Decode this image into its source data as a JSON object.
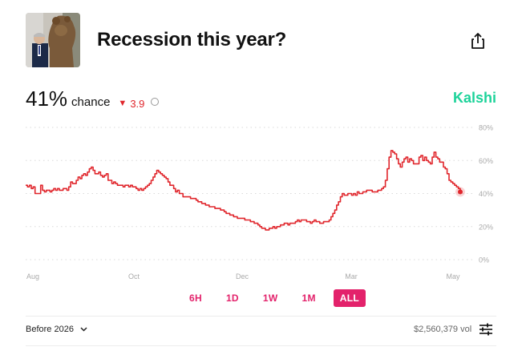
{
  "market": {
    "title": "Recession this year?",
    "probability": "41%",
    "chance_label": "chance",
    "delta": "3.9",
    "brand": "Kalshi",
    "brand_color": "#1dd39a"
  },
  "icons": {
    "share": "share-icon",
    "info": "info-icon",
    "delta": "triangle-down-icon",
    "chevron": "chevron-down-icon",
    "settings": "sliders-icon"
  },
  "chart_data": {
    "type": "line",
    "x_ticks": [
      "Aug",
      "Oct",
      "Dec",
      "Mar",
      "May"
    ],
    "y_ticks": [
      "80%",
      "60%",
      "40%",
      "20%",
      "0%"
    ],
    "ylim": [
      0,
      80
    ],
    "grid": true,
    "line_color": "#e0262c",
    "series": [
      {
        "values": [
          45,
          44,
          45,
          43,
          44,
          40,
          40,
          40,
          45,
          42,
          41,
          42,
          42,
          41,
          42,
          43,
          42,
          43,
          42,
          42,
          43,
          43,
          42,
          44,
          47,
          46,
          46,
          48,
          50,
          49,
          51,
          52,
          51,
          53,
          55,
          56,
          54,
          52,
          52,
          53,
          51,
          50,
          51,
          52,
          48,
          48,
          46,
          47,
          46,
          45,
          45,
          45,
          44,
          45,
          45,
          44,
          45,
          44,
          44,
          43,
          42,
          43,
          42,
          43,
          44,
          45,
          46,
          48,
          50,
          52,
          54,
          53,
          52,
          51,
          50,
          49,
          47,
          45,
          45,
          43,
          41,
          42,
          40,
          40,
          38,
          38,
          38,
          38,
          37,
          37,
          37,
          36,
          35,
          35,
          34,
          34,
          33,
          33,
          32,
          32,
          32,
          31,
          31,
          31,
          30,
          30,
          29,
          28,
          28,
          27,
          27,
          26,
          26,
          25,
          25,
          25,
          25,
          24,
          24,
          24,
          23,
          23,
          22,
          22,
          21,
          20,
          19,
          19,
          18,
          18,
          19,
          19,
          20,
          19,
          20,
          20,
          21,
          21,
          22,
          22,
          21,
          22,
          22,
          22,
          23,
          24,
          23,
          24,
          24,
          24,
          23,
          23,
          22,
          23,
          24,
          23,
          23,
          22,
          22,
          23,
          23,
          23,
          24,
          26,
          28,
          30,
          33,
          35,
          38,
          40,
          39,
          39,
          40,
          40,
          39,
          40,
          39,
          41,
          40,
          40,
          41,
          41,
          42,
          42,
          42,
          41,
          41,
          41,
          42,
          42,
          43,
          44,
          48,
          55,
          62,
          66,
          65,
          64,
          61,
          58,
          56,
          59,
          61,
          62,
          59,
          61,
          60,
          58,
          58,
          58,
          62,
          63,
          60,
          62,
          60,
          59,
          58,
          62,
          65,
          62,
          61,
          59,
          59,
          56,
          55,
          52,
          48,
          47,
          46,
          45,
          44,
          43,
          41
        ],
        "last_value": 41
      }
    ]
  },
  "range_buttons": [
    {
      "label": "6H",
      "active": false
    },
    {
      "label": "1D",
      "active": false
    },
    {
      "label": "1W",
      "active": false
    },
    {
      "label": "1M",
      "active": false
    },
    {
      "label": "ALL",
      "active": true
    }
  ],
  "footer": {
    "outcome": "Before 2026",
    "volume": "$2,560,379 vol"
  }
}
